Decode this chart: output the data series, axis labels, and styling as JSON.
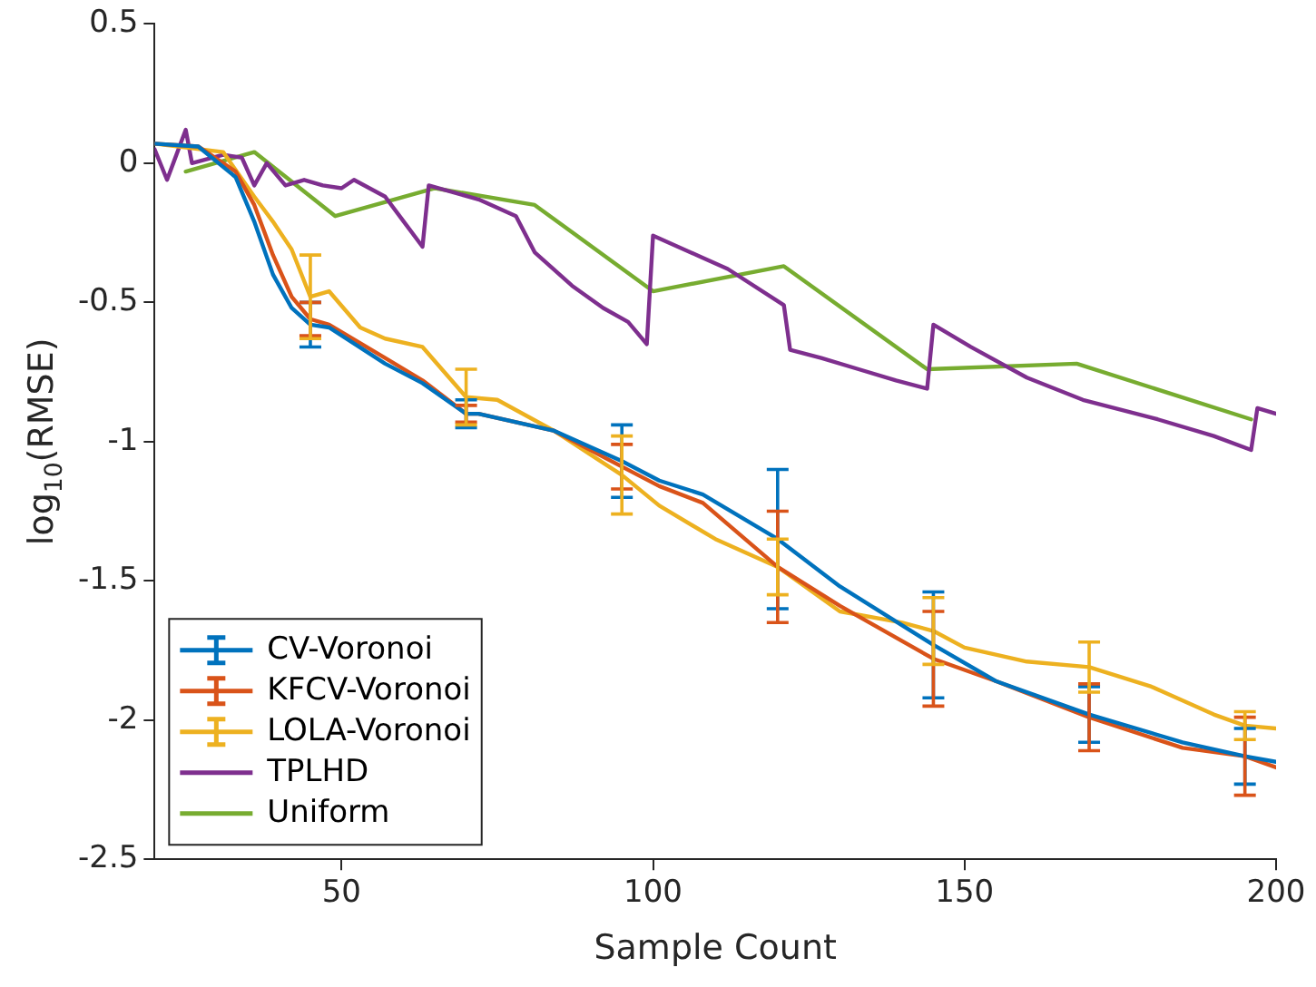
{
  "chart_data": {
    "type": "line",
    "xlabel": "Sample Count",
    "ylabel": "log$_{10}$(RMSE)",
    "xlim": [
      20,
      200
    ],
    "xticks": [
      50,
      100,
      150,
      200
    ],
    "ylim": [
      -2.5,
      0.5
    ],
    "yticks": [
      -2.5,
      -2,
      -1.5,
      -1,
      -0.5,
      0,
      0.5
    ],
    "grid": false,
    "legend": "bottom left",
    "marker": "none",
    "line_style": "solid",
    "series": [
      {
        "name": "CV-Voronoi",
        "color": "#0072bd",
        "x": [
          20,
          27,
          33,
          36,
          39,
          42,
          45,
          48,
          57,
          63,
          70,
          72,
          84,
          95,
          101,
          108,
          120,
          130,
          145,
          155,
          170,
          185,
          195,
          200
        ],
        "values": [
          0.07,
          0.06,
          -0.05,
          -0.21,
          -0.4,
          -0.52,
          -0.58,
          -0.59,
          -0.72,
          -0.79,
          -0.9,
          -0.9,
          -0.96,
          -1.07,
          -1.14,
          -1.19,
          -1.35,
          -1.52,
          -1.73,
          -1.86,
          -1.98,
          -2.08,
          -2.13,
          -2.15
        ],
        "errors": [
          null,
          null,
          null,
          null,
          null,
          null,
          0.08,
          null,
          null,
          null,
          0.05,
          null,
          null,
          0.13,
          null,
          null,
          0.25,
          null,
          0.19,
          null,
          0.1,
          null,
          0.1,
          null
        ]
      },
      {
        "name": "KFCV-Voronoi",
        "color": "#d95319",
        "x": [
          20,
          27,
          33,
          36,
          39,
          42,
          45,
          48,
          57,
          63,
          70,
          72,
          84,
          95,
          101,
          108,
          120,
          130,
          145,
          155,
          170,
          185,
          195,
          200
        ],
        "values": [
          0.07,
          0.06,
          -0.03,
          -0.15,
          -0.33,
          -0.48,
          -0.56,
          -0.58,
          -0.7,
          -0.78,
          -0.9,
          -0.9,
          -0.96,
          -1.09,
          -1.16,
          -1.22,
          -1.45,
          -1.59,
          -1.78,
          -1.86,
          -1.99,
          -2.1,
          -2.13,
          -2.17
        ],
        "errors": [
          null,
          null,
          null,
          null,
          null,
          null,
          0.06,
          null,
          null,
          null,
          0.03,
          null,
          null,
          0.08,
          null,
          null,
          0.2,
          null,
          0.17,
          null,
          0.12,
          null,
          0.14,
          null
        ]
      },
      {
        "name": "LOLA-Voronoi",
        "color": "#edb120",
        "x": [
          20,
          31,
          36,
          39,
          42,
          45,
          48,
          53,
          57,
          63,
          70,
          75,
          84,
          95,
          101,
          110,
          120,
          130,
          140,
          145,
          150,
          160,
          170,
          180,
          190,
          195,
          200
        ],
        "values": [
          0.07,
          0.04,
          -0.12,
          -0.21,
          -0.31,
          -0.48,
          -0.46,
          -0.59,
          -0.63,
          -0.66,
          -0.84,
          -0.85,
          -0.96,
          -1.12,
          -1.23,
          -1.35,
          -1.45,
          -1.61,
          -1.65,
          -1.68,
          -1.74,
          -1.79,
          -1.81,
          -1.88,
          -1.98,
          -2.02,
          -2.03
        ],
        "errors": [
          null,
          null,
          null,
          null,
          null,
          0.15,
          null,
          null,
          null,
          null,
          0.1,
          null,
          null,
          0.14,
          null,
          null,
          0.1,
          null,
          null,
          0.12,
          null,
          null,
          0.09,
          null,
          null,
          0.05,
          null
        ]
      },
      {
        "name": "TPLHD",
        "color": "#7e2f8e",
        "x": [
          20,
          22,
          23,
          25,
          26,
          31,
          34,
          36,
          38,
          41,
          44,
          47,
          50,
          52,
          57,
          60,
          63,
          64,
          72,
          78,
          81,
          87,
          92,
          96,
          99,
          100,
          108,
          112,
          121,
          122,
          127,
          133,
          139,
          144,
          145,
          151,
          160,
          169,
          181,
          190,
          196,
          197,
          200
        ],
        "values": [
          0.05,
          -0.06,
          0,
          0.12,
          0,
          0.03,
          0.02,
          -0.08,
          0,
          -0.08,
          -0.06,
          -0.08,
          -0.09,
          -0.06,
          -0.12,
          -0.21,
          -0.3,
          -0.08,
          -0.13,
          -0.19,
          -0.32,
          -0.44,
          -0.52,
          -0.57,
          -0.65,
          -0.26,
          -0.34,
          -0.38,
          -0.51,
          -0.67,
          -0.7,
          -0.74,
          -0.78,
          -0.81,
          -0.58,
          -0.66,
          -0.77,
          -0.85,
          -0.92,
          -0.98,
          -1.03,
          -0.88,
          -0.9
        ]
      },
      {
        "name": "Uniform",
        "color": "#77ac30",
        "x": [
          25,
          36,
          49,
          65,
          81,
          100,
          121,
          144,
          168,
          196
        ],
        "values": [
          -0.03,
          0.04,
          -0.19,
          -0.09,
          -0.15,
          -0.46,
          -0.37,
          -0.74,
          -0.72,
          -0.92
        ]
      }
    ]
  }
}
